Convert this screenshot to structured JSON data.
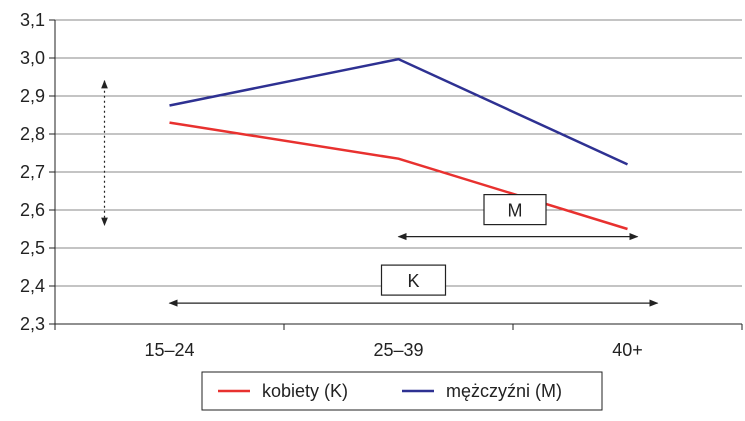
{
  "chart_data": {
    "type": "line",
    "categories": [
      "15–24",
      "25–39",
      "40+"
    ],
    "y_ticks": [
      "2,3",
      "2,4",
      "2,5",
      "2,6",
      "2,7",
      "2,8",
      "2,9",
      "3,0",
      "3,1"
    ],
    "ylim": [
      2.3,
      3.1
    ],
    "grid": true,
    "legend_placement": "bottom",
    "series": [
      {
        "name": "kobiety (K)",
        "color": "#e8312f",
        "values": [
          2.83,
          2.735,
          2.55
        ]
      },
      {
        "name": "mężczyźni (M)",
        "color": "#2e3192",
        "values": [
          2.875,
          2.997,
          2.72
        ]
      }
    ],
    "annotations": [
      {
        "label": "M",
        "type": "range-arrow",
        "from": "25–39",
        "to": "40+",
        "y": 2.53
      },
      {
        "label": "K",
        "type": "range-arrow",
        "from": "15–24",
        "to": "40+",
        "y": 2.355
      },
      {
        "label": "",
        "type": "dotted-vertical-arrow",
        "at": "15–24",
        "y_from": 2.56,
        "y_to": 2.94
      }
    ]
  }
}
